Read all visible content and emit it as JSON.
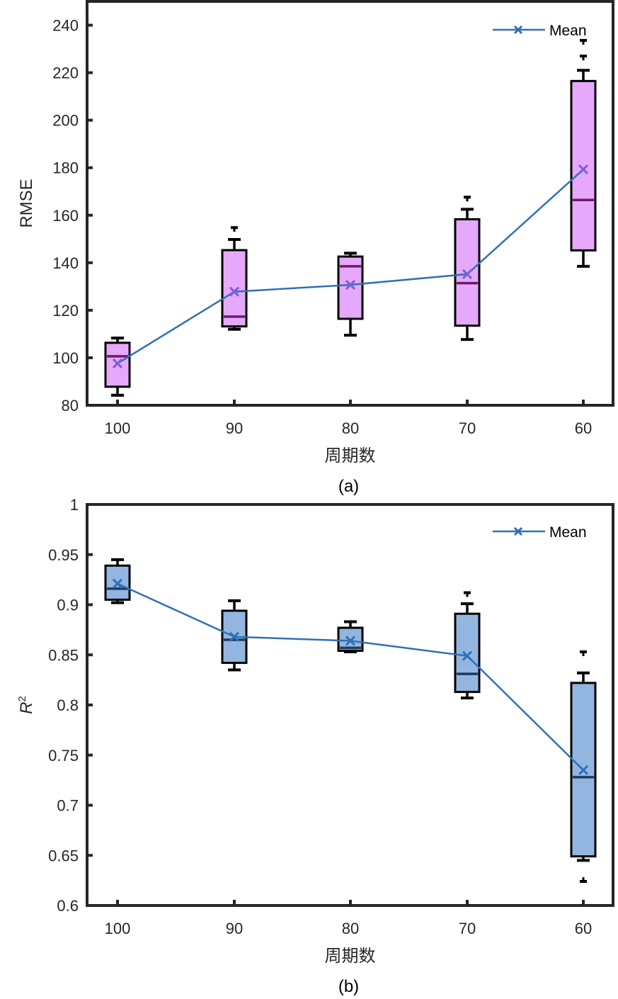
{
  "chart_data": [
    {
      "id": "a",
      "type": "box",
      "caption": "(a)",
      "xlabel": "周期数",
      "ylabel": "RMSE",
      "ylabel_superscript": "",
      "categories": [
        "100",
        "90",
        "80",
        "70",
        "60"
      ],
      "ylim": [
        80,
        250
      ],
      "yticks": [
        80,
        100,
        120,
        140,
        160,
        180,
        200,
        220,
        240
      ],
      "ytick_labels": [
        "80",
        "100",
        "120",
        "140",
        "160",
        "180",
        "200",
        "220",
        "240"
      ],
      "legend": {
        "label": "Mean",
        "position": "top-right"
      },
      "box_fill": "#e6a8fb",
      "median_color": "#6a1b6e",
      "mean_color": "#7b5fd6",
      "line_color": "#3070b8",
      "boxes": [
        {
          "category": "100",
          "whisker_low": 84.2,
          "q1": 87.8,
          "median": 100.6,
          "q3": 106.3,
          "whisker_high": 108.3,
          "mean": 97.6,
          "outliers": []
        },
        {
          "category": "90",
          "whisker_low": 112.0,
          "q1": 113.2,
          "median": 117.3,
          "q3": 145.3,
          "whisker_high": 149.8,
          "mean": 127.8,
          "outliers": [
            154.8
          ]
        },
        {
          "category": "80",
          "whisker_low": 109.5,
          "q1": 116.4,
          "median": 138.5,
          "q3": 142.6,
          "whisker_high": 144.0,
          "mean": 130.7,
          "outliers": []
        },
        {
          "category": "70",
          "whisker_low": 107.7,
          "q1": 113.5,
          "median": 131.4,
          "q3": 158.3,
          "whisker_high": 162.5,
          "mean": 135.2,
          "outliers": [
            167.6
          ]
        },
        {
          "category": "60",
          "whisker_low": 138.5,
          "q1": 145.2,
          "median": 166.4,
          "q3": 216.5,
          "whisker_high": 221.0,
          "mean": 179.3,
          "outliers": [
            227.0,
            233.6
          ]
        }
      ]
    },
    {
      "id": "b",
      "type": "box",
      "caption": "(b)",
      "xlabel": "周期数",
      "ylabel": "R",
      "ylabel_superscript": "2",
      "categories": [
        "100",
        "90",
        "80",
        "70",
        "60"
      ],
      "ylim": [
        0.6,
        1.0
      ],
      "yticks": [
        0.6,
        0.65,
        0.7,
        0.75,
        0.8,
        0.85,
        0.9,
        0.95,
        1.0
      ],
      "ytick_labels": [
        "0.6",
        "0.65",
        "0.7",
        "0.75",
        "0.8",
        "0.85",
        "0.9",
        "0.95",
        "1"
      ],
      "legend": {
        "label": "Mean",
        "position": "top-right"
      },
      "box_fill": "#93b6e0",
      "median_color": "#1f3a5c",
      "mean_color": "#3070b8",
      "line_color": "#3070b8",
      "boxes": [
        {
          "category": "100",
          "whisker_low": 0.902,
          "q1": 0.905,
          "median": 0.916,
          "q3": 0.939,
          "whisker_high": 0.945,
          "mean": 0.921,
          "outliers": []
        },
        {
          "category": "90",
          "whisker_low": 0.835,
          "q1": 0.842,
          "median": 0.865,
          "q3": 0.894,
          "whisker_high": 0.904,
          "mean": 0.868,
          "outliers": []
        },
        {
          "category": "80",
          "whisker_low": 0.853,
          "q1": 0.854,
          "median": 0.857,
          "q3": 0.877,
          "whisker_high": 0.883,
          "mean": 0.864,
          "outliers": []
        },
        {
          "category": "70",
          "whisker_low": 0.807,
          "q1": 0.813,
          "median": 0.831,
          "q3": 0.891,
          "whisker_high": 0.901,
          "mean": 0.849,
          "outliers": [
            0.912
          ]
        },
        {
          "category": "60",
          "whisker_low": 0.645,
          "q1": 0.649,
          "median": 0.728,
          "q3": 0.822,
          "whisker_high": 0.832,
          "mean": 0.735,
          "outliers": [
            0.853,
            0.624
          ]
        }
      ]
    }
  ]
}
